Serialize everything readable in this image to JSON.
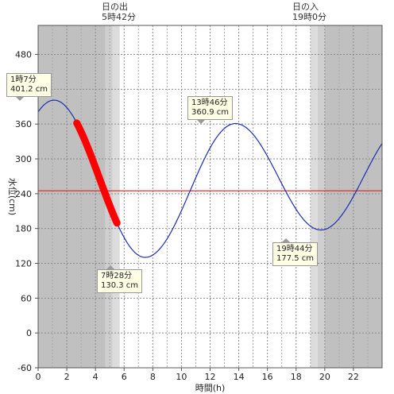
{
  "events": {
    "sunrise": {
      "label": "日の出",
      "time": "5時42分"
    },
    "sunset": {
      "label": "日の入",
      "time": "19時0分"
    }
  },
  "chart_data": {
    "type": "line",
    "xlabel": "時間(h)",
    "ylabel": "水位(cm)",
    "xlim": [
      0,
      24
    ],
    "ylim": [
      -60,
      530
    ],
    "x_ticks": [
      0,
      2,
      4,
      6,
      8,
      10,
      12,
      14,
      16,
      18,
      20,
      22
    ],
    "y_ticks": [
      -60,
      0,
      60,
      120,
      180,
      240,
      300,
      360,
      420,
      480
    ],
    "grid": true,
    "reference_line": {
      "value": 245,
      "color": "#dd2222"
    },
    "extremes": [
      {
        "x": 1.117,
        "y": 401.2,
        "time": "1時7分",
        "value": "401.2 cm",
        "kind": "high"
      },
      {
        "x": 7.467,
        "y": 130.3,
        "time": "7時28分",
        "value": "130.3 cm",
        "kind": "low"
      },
      {
        "x": 13.767,
        "y": 360.9,
        "time": "13時46分",
        "value": "360.9 cm",
        "kind": "high"
      },
      {
        "x": 19.733,
        "y": 177.5,
        "time": "19時44分",
        "value": "177.5 cm",
        "kind": "low"
      }
    ],
    "current_segment": {
      "x_start": 2.7,
      "x_end": 5.5,
      "color": "#ff0000"
    },
    "night_shading": {
      "sunrise_hour": 5.7,
      "sunset_hour": 19.0,
      "twilight_hours": 1.0
    },
    "colors": {
      "curve": "#1a2fb0",
      "night": "#c0c0c0",
      "twilight": "#dcdcdc",
      "day": "#ffffff",
      "highlight": "#ff0000"
    }
  }
}
